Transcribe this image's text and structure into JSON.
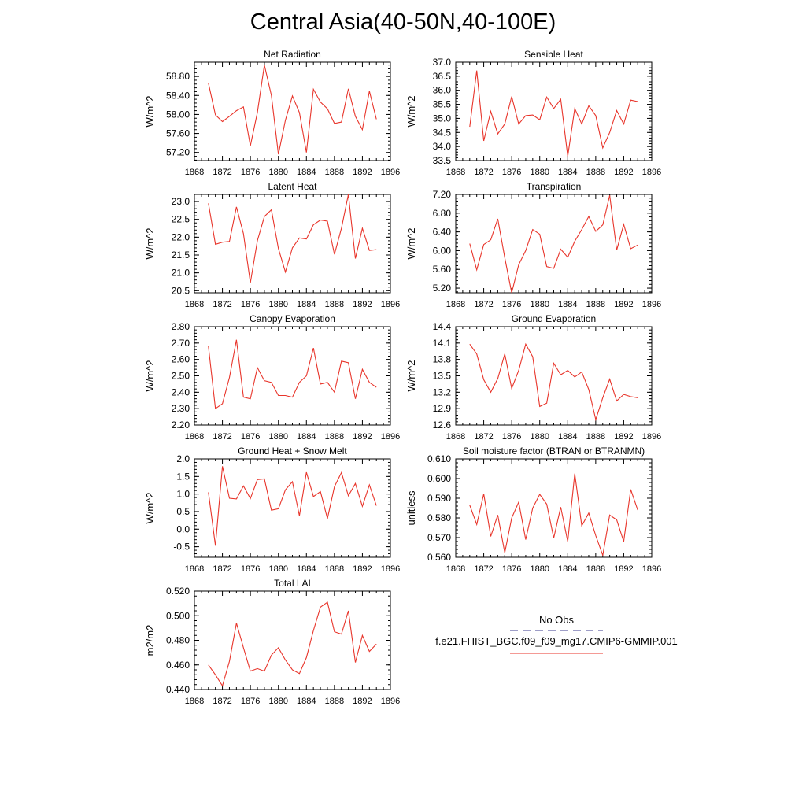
{
  "title": "Central Asia(40-50N,40-100E)",
  "x_ticks": [
    "1868",
    "1872",
    "1876",
    "1880",
    "1884",
    "1888",
    "1892",
    "1896"
  ],
  "legend": {
    "entries": [
      {
        "label": "No Obs",
        "color": "#3b3b8f",
        "dash": true
      },
      {
        "label": "f.e21.FHIST_BGC.f09_f09_mg17.CMIP6-GMMIP.001",
        "color": "#e8352b",
        "dash": false
      }
    ]
  },
  "chart_data": [
    {
      "type": "line",
      "title": "Net Radiation",
      "ylabel": "W/m^2",
      "xlim": [
        1868,
        1896
      ],
      "ylim": [
        57.03,
        59.1
      ],
      "yticks": [
        57.2,
        57.6,
        58.0,
        58.4,
        58.8
      ],
      "ytick_labels": [
        "57.20",
        "57.60",
        "58.00",
        "58.40",
        "58.80"
      ],
      "series": [
        {
          "color": "#e8352b",
          "x": [
            1870,
            1871,
            1872,
            1873,
            1874,
            1875,
            1876,
            1877,
            1878,
            1879,
            1880,
            1881,
            1882,
            1883,
            1884,
            1885,
            1886,
            1887,
            1888,
            1889,
            1890,
            1891,
            1892,
            1893,
            1894
          ],
          "values": [
            58.66,
            57.99,
            57.85,
            57.96,
            58.08,
            58.16,
            57.34,
            58.04,
            59.04,
            58.4,
            57.16,
            57.88,
            58.39,
            58.04,
            57.2,
            58.53,
            58.26,
            58.12,
            57.81,
            57.84,
            58.54,
            57.96,
            57.68,
            58.49,
            57.9
          ]
        }
      ]
    },
    {
      "type": "line",
      "title": "Sensible Heat",
      "ylabel": "W/m^2",
      "xlim": [
        1868,
        1896
      ],
      "ylim": [
        33.5,
        37.0
      ],
      "yticks": [
        33.5,
        34.0,
        34.5,
        35.0,
        35.5,
        36.0,
        36.5,
        37.0
      ],
      "ytick_labels": [
        "33.5",
        "34.0",
        "34.5",
        "35.0",
        "35.5",
        "36.0",
        "36.5",
        "37.0"
      ],
      "series": [
        {
          "color": "#e8352b",
          "x": [
            1870,
            1871,
            1872,
            1873,
            1874,
            1875,
            1876,
            1877,
            1878,
            1879,
            1880,
            1881,
            1882,
            1883,
            1884,
            1885,
            1886,
            1887,
            1888,
            1889,
            1890,
            1891,
            1892,
            1893,
            1894
          ],
          "values": [
            34.7,
            36.7,
            34.2,
            35.25,
            34.45,
            34.8,
            35.78,
            34.8,
            35.1,
            35.12,
            34.95,
            35.76,
            35.35,
            35.68,
            33.65,
            35.35,
            34.8,
            35.45,
            35.1,
            33.95,
            34.5,
            35.28,
            34.8,
            35.65,
            35.6
          ]
        }
      ]
    },
    {
      "type": "line",
      "title": "Latent Heat",
      "ylabel": "W/m^2",
      "xlim": [
        1868,
        1896
      ],
      "ylim": [
        20.44,
        23.2
      ],
      "yticks": [
        20.5,
        21.0,
        21.5,
        22.0,
        22.5,
        23.0
      ],
      "ytick_labels": [
        "20.5",
        "21.0",
        "21.5",
        "22.0",
        "22.5",
        "23.0"
      ],
      "series": [
        {
          "color": "#e8352b",
          "x": [
            1870,
            1871,
            1872,
            1873,
            1874,
            1875,
            1876,
            1877,
            1878,
            1879,
            1880,
            1881,
            1882,
            1883,
            1884,
            1885,
            1886,
            1887,
            1888,
            1889,
            1890,
            1891,
            1892,
            1893,
            1894
          ],
          "values": [
            22.95,
            21.8,
            21.86,
            21.88,
            22.85,
            22.1,
            20.72,
            21.9,
            22.58,
            22.77,
            21.68,
            21.02,
            21.7,
            21.98,
            21.95,
            22.35,
            22.48,
            22.45,
            21.52,
            22.25,
            23.2,
            21.4,
            22.25,
            21.63,
            21.65
          ]
        }
      ]
    },
    {
      "type": "line",
      "title": "Transpiration",
      "ylabel": "W/m^2",
      "xlim": [
        1868,
        1896
      ],
      "ylim": [
        5.1,
        7.2
      ],
      "yticks": [
        5.2,
        5.6,
        6.0,
        6.4,
        6.8,
        7.2
      ],
      "ytick_labels": [
        "5.20",
        "5.60",
        "6.00",
        "6.40",
        "6.80",
        "7.20"
      ],
      "series": [
        {
          "color": "#e8352b",
          "x": [
            1870,
            1871,
            1872,
            1873,
            1874,
            1875,
            1876,
            1877,
            1878,
            1879,
            1880,
            1881,
            1882,
            1883,
            1884,
            1885,
            1886,
            1887,
            1888,
            1889,
            1890,
            1891,
            1892,
            1893,
            1894
          ],
          "values": [
            6.15,
            5.59,
            6.13,
            6.23,
            6.68,
            5.85,
            5.1,
            5.7,
            6.0,
            6.45,
            6.35,
            5.66,
            5.62,
            6.03,
            5.86,
            6.2,
            6.45,
            6.73,
            6.41,
            6.55,
            7.18,
            6.01,
            6.56,
            6.04,
            6.12
          ]
        }
      ]
    },
    {
      "type": "line",
      "title": "Canopy Evaporation",
      "ylabel": "W/m^2",
      "xlim": [
        1868,
        1896
      ],
      "ylim": [
        2.2,
        2.8
      ],
      "yticks": [
        2.2,
        2.3,
        2.4,
        2.5,
        2.6,
        2.7,
        2.8
      ],
      "ytick_labels": [
        "2.20",
        "2.30",
        "2.40",
        "2.50",
        "2.60",
        "2.70",
        "2.80"
      ],
      "series": [
        {
          "color": "#e8352b",
          "x": [
            1870,
            1871,
            1872,
            1873,
            1874,
            1875,
            1876,
            1877,
            1878,
            1879,
            1880,
            1881,
            1882,
            1883,
            1884,
            1885,
            1886,
            1887,
            1888,
            1889,
            1890,
            1891,
            1892,
            1893,
            1894
          ],
          "values": [
            2.68,
            2.3,
            2.33,
            2.49,
            2.72,
            2.37,
            2.36,
            2.55,
            2.47,
            2.46,
            2.38,
            2.38,
            2.37,
            2.46,
            2.5,
            2.67,
            2.45,
            2.46,
            2.4,
            2.59,
            2.58,
            2.36,
            2.54,
            2.46,
            2.43
          ]
        }
      ]
    },
    {
      "type": "line",
      "title": "Ground Evaporation",
      "ylabel": "W/m^2",
      "xlim": [
        1868,
        1896
      ],
      "ylim": [
        12.6,
        14.4
      ],
      "yticks": [
        12.6,
        12.9,
        13.2,
        13.5,
        13.8,
        14.1,
        14.4
      ],
      "ytick_labels": [
        "12.6",
        "12.9",
        "13.2",
        "13.5",
        "13.8",
        "14.1",
        "14.4"
      ],
      "series": [
        {
          "color": "#e8352b",
          "x": [
            1870,
            1871,
            1872,
            1873,
            1874,
            1875,
            1876,
            1877,
            1878,
            1879,
            1880,
            1881,
            1882,
            1883,
            1884,
            1885,
            1886,
            1887,
            1888,
            1889,
            1890,
            1891,
            1892,
            1893,
            1894
          ],
          "values": [
            14.08,
            13.9,
            13.43,
            13.2,
            13.45,
            13.9,
            13.27,
            13.6,
            14.08,
            13.85,
            12.94,
            13.0,
            13.73,
            13.52,
            13.6,
            13.48,
            13.57,
            13.25,
            12.7,
            13.1,
            13.44,
            13.04,
            13.16,
            13.12,
            13.1
          ]
        }
      ]
    },
    {
      "type": "line",
      "title": "Ground Heat + Snow Melt",
      "ylabel": "W/m^2",
      "xlim": [
        1868,
        1896
      ],
      "ylim": [
        -0.8,
        2.0
      ],
      "yticks": [
        -0.5,
        0.0,
        0.5,
        1.0,
        1.5,
        2.0
      ],
      "ytick_labels": [
        "-0.5",
        "0.0",
        "0.5",
        "1.0",
        "1.5",
        "2.0"
      ],
      "series": [
        {
          "color": "#e8352b",
          "x": [
            1870,
            1871,
            1872,
            1873,
            1874,
            1875,
            1876,
            1877,
            1878,
            1879,
            1880,
            1881,
            1882,
            1883,
            1884,
            1885,
            1886,
            1887,
            1888,
            1889,
            1890,
            1891,
            1892,
            1893,
            1894
          ],
          "values": [
            1.05,
            -0.47,
            1.79,
            0.88,
            0.86,
            1.23,
            0.87,
            1.41,
            1.43,
            0.54,
            0.58,
            1.12,
            1.35,
            0.38,
            1.62,
            0.93,
            1.07,
            0.3,
            1.21,
            1.61,
            0.95,
            1.3,
            0.65,
            1.26,
            0.67
          ]
        }
      ]
    },
    {
      "type": "line",
      "title": "Soil moisture factor (BTRAN or BTRANMN)",
      "ylabel": "unitless",
      "xlim": [
        1868,
        1896
      ],
      "ylim": [
        0.56,
        0.61
      ],
      "yticks": [
        0.56,
        0.57,
        0.58,
        0.59,
        0.6,
        0.61
      ],
      "ytick_labels": [
        "0.560",
        "0.570",
        "0.580",
        "0.590",
        "0.600",
        "0.610"
      ],
      "series": [
        {
          "color": "#e8352b",
          "x": [
            1870,
            1871,
            1872,
            1873,
            1874,
            1875,
            1876,
            1877,
            1878,
            1879,
            1880,
            1881,
            1882,
            1883,
            1884,
            1885,
            1886,
            1887,
            1888,
            1889,
            1890,
            1891,
            1892,
            1893,
            1894
          ],
          "values": [
            0.5865,
            0.5767,
            0.5922,
            0.5706,
            0.5815,
            0.5623,
            0.58,
            0.588,
            0.569,
            0.585,
            0.592,
            0.587,
            0.5698,
            0.5855,
            0.568,
            0.6025,
            0.576,
            0.5825,
            0.571,
            0.561,
            0.5815,
            0.579,
            0.568,
            0.5945,
            0.584
          ]
        }
      ]
    },
    {
      "type": "line",
      "title": "Total LAI",
      "ylabel": "m2/m2",
      "xlim": [
        1868,
        1896
      ],
      "ylim": [
        0.44,
        0.52
      ],
      "yticks": [
        0.44,
        0.46,
        0.48,
        0.5,
        0.52
      ],
      "ytick_labels": [
        "0.440",
        "0.460",
        "0.480",
        "0.500",
        "0.520"
      ],
      "series": [
        {
          "color": "#e8352b",
          "x": [
            1870,
            1871,
            1872,
            1873,
            1874,
            1875,
            1876,
            1877,
            1878,
            1879,
            1880,
            1881,
            1882,
            1883,
            1884,
            1885,
            1886,
            1887,
            1888,
            1889,
            1890,
            1891,
            1892,
            1893,
            1894
          ],
          "values": [
            0.46,
            0.452,
            0.443,
            0.463,
            0.494,
            0.474,
            0.455,
            0.457,
            0.455,
            0.468,
            0.474,
            0.464,
            0.456,
            0.453,
            0.466,
            0.488,
            0.507,
            0.511,
            0.487,
            0.485,
            0.504,
            0.462,
            0.484,
            0.471,
            0.477
          ]
        }
      ]
    }
  ]
}
